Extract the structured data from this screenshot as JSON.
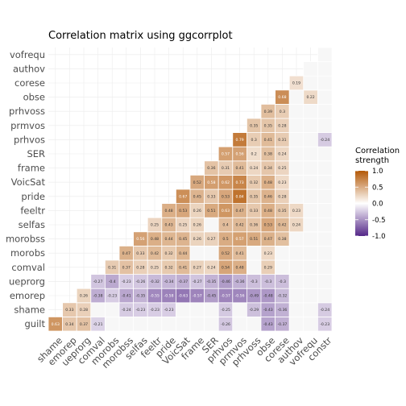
{
  "chart_data": {
    "type": "heatmap",
    "title": "Correlation matrix using ggcorrplot",
    "x_labels": [
      "shame",
      "emorep",
      "ueprorg",
      "comval",
      "morobs",
      "morobss",
      "selfas",
      "feeltr",
      "pride",
      "VoicSat",
      "frame",
      "SER",
      "prhvos",
      "prmvos",
      "prhvoss",
      "obse",
      "corese",
      "authov",
      "vofrequ",
      "constr"
    ],
    "y_labels": [
      "guilt",
      "shame",
      "emorep",
      "ueprorg",
      "comval",
      "morobs",
      "morobss",
      "selfas",
      "feeltr",
      "pride",
      "VoicSat",
      "frame",
      "SER",
      "prhvos",
      "prmvos",
      "prhvoss",
      "obse",
      "corese",
      "authov",
      "vofrequ"
    ],
    "values": [
      [
        0.63,
        0.34,
        0.37,
        -0.21,
        null,
        null,
        null,
        null,
        null,
        null,
        null,
        null,
        -0.26,
        null,
        null,
        -0.43,
        -0.37,
        null,
        null,
        -0.23
      ],
      [
        null,
        0.33,
        0.28,
        null,
        null,
        -0.24,
        -0.23,
        -0.23,
        -0.23,
        null,
        null,
        null,
        -0.25,
        null,
        -0.29,
        -0.43,
        -0.36,
        null,
        null,
        -0.24
      ],
      [
        null,
        null,
        0.26,
        -0.38,
        -0.23,
        -0.41,
        -0.35,
        -0.55,
        -0.58,
        -0.63,
        -0.57,
        -0.45,
        -0.57,
        -0.56,
        -0.49,
        -0.48,
        -0.32,
        null,
        null,
        null
      ],
      [
        null,
        null,
        null,
        -0.27,
        -0.4,
        -0.23,
        -0.26,
        -0.32,
        -0.34,
        -0.37,
        -0.27,
        -0.35,
        -0.46,
        -0.36,
        -0.3,
        -0.3,
        -0.3,
        null,
        null,
        null
      ],
      [
        null,
        null,
        null,
        null,
        0.31,
        0.37,
        0.28,
        0.25,
        0.32,
        0.41,
        0.27,
        0.24,
        0.54,
        0.48,
        null,
        0.29,
        null,
        null,
        null,
        null
      ],
      [
        null,
        null,
        null,
        null,
        null,
        0.47,
        0.33,
        0.42,
        0.32,
        0.44,
        null,
        null,
        0.52,
        0.41,
        null,
        0.23,
        null,
        null,
        null,
        null
      ],
      [
        null,
        null,
        null,
        null,
        null,
        null,
        0.56,
        0.48,
        0.44,
        0.45,
        0.26,
        0.27,
        0.5,
        0.57,
        0.51,
        0.47,
        0.38,
        null,
        null,
        null
      ],
      [
        null,
        null,
        null,
        null,
        null,
        null,
        null,
        0.25,
        0.43,
        0.25,
        0.26,
        null,
        0.4,
        0.42,
        0.36,
        0.53,
        0.42,
        0.24,
        null,
        null
      ],
      [
        null,
        null,
        null,
        null,
        null,
        null,
        null,
        null,
        0.48,
        0.53,
        0.26,
        0.51,
        0.63,
        0.47,
        0.33,
        0.48,
        0.35,
        0.23,
        null,
        null
      ],
      [
        null,
        null,
        null,
        null,
        null,
        null,
        null,
        null,
        null,
        0.67,
        0.45,
        0.33,
        0.53,
        0.84,
        0.35,
        0.46,
        0.28,
        null,
        null,
        null
      ],
      [
        null,
        null,
        null,
        null,
        null,
        null,
        null,
        null,
        null,
        null,
        0.52,
        0.58,
        0.62,
        0.73,
        0.32,
        0.48,
        0.23,
        null,
        null,
        null
      ],
      [
        null,
        null,
        null,
        null,
        null,
        null,
        null,
        null,
        null,
        null,
        null,
        0.36,
        0.31,
        0.41,
        0.24,
        0.34,
        0.25,
        null,
        null,
        null
      ],
      [
        null,
        null,
        null,
        null,
        null,
        null,
        null,
        null,
        null,
        null,
        null,
        null,
        0.57,
        0.56,
        0.2,
        0.38,
        0.24,
        null,
        null,
        null
      ],
      [
        null,
        null,
        null,
        null,
        null,
        null,
        null,
        null,
        null,
        null,
        null,
        null,
        null,
        0.79,
        0.3,
        0.41,
        0.31,
        null,
        null,
        -0.24
      ],
      [
        null,
        null,
        null,
        null,
        null,
        null,
        null,
        null,
        null,
        null,
        null,
        null,
        null,
        null,
        0.35,
        0.35,
        0.28,
        null,
        null,
        null
      ],
      [
        null,
        null,
        null,
        null,
        null,
        null,
        null,
        null,
        null,
        null,
        null,
        null,
        null,
        null,
        null,
        0.39,
        0.3,
        null,
        null,
        null
      ],
      [
        null,
        null,
        null,
        null,
        null,
        null,
        null,
        null,
        null,
        null,
        null,
        null,
        null,
        null,
        null,
        null,
        0.68,
        null,
        0.22,
        null
      ],
      [
        null,
        null,
        null,
        null,
        null,
        null,
        null,
        null,
        null,
        null,
        null,
        null,
        null,
        null,
        null,
        null,
        null,
        0.19,
        null,
        null
      ],
      [
        null,
        null,
        null,
        null,
        null,
        null,
        null,
        null,
        null,
        null,
        null,
        null,
        null,
        null,
        null,
        null,
        null,
        null,
        null,
        null
      ],
      [
        null,
        null,
        null,
        null,
        null,
        null,
        null,
        null,
        null,
        null,
        null,
        null,
        null,
        null,
        null,
        null,
        null,
        null,
        null,
        null
      ]
    ],
    "legend": {
      "title_line1": "Correlation",
      "title_line2": "strength",
      "ticks": [
        1.0,
        0.5,
        0.0,
        -0.5,
        -1.0
      ],
      "tick_labels": [
        "1.0",
        "0.5",
        "0.0",
        "-0.5",
        "-1.0"
      ],
      "placement": "right"
    },
    "colors": {
      "high": "#b35806",
      "mid": "#ffffff",
      "low": "#542788",
      "grid": "#ebebeb",
      "insignificant_fill": "#f7f7f7"
    }
  }
}
